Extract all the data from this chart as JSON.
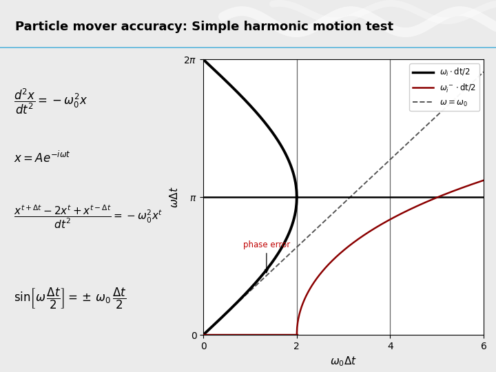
{
  "title": "Particle mover accuracy: Simple harmonic motion test",
  "title_bg_top": "#7ECFEA",
  "title_bg_bot": "#A8DCF0",
  "xlabel": "$\\omega_0\\Delta t$",
  "ylabel": "$\\omega\\Delta t$",
  "xlim": [
    0,
    6
  ],
  "ylim": [
    0,
    6.283185307
  ],
  "yticks": [
    0,
    3.14159265,
    6.2831853
  ],
  "ytick_labels": [
    "0",
    "$\\pi$",
    "$2\\pi$"
  ],
  "xticks": [
    0,
    2,
    4,
    6
  ],
  "legend_label_black": "$\\omega_i\\cdot$dt/2",
  "legend_label_red": "$\\omega_i^-\\cdot$dt/2",
  "legend_label_dashed": "$\\omega = \\omega_0$",
  "black_color": "#000000",
  "red_color": "#8B0000",
  "dashed_color": "#555555",
  "phase_error_label": "phase error",
  "phase_error_color": "#C00000",
  "bg_color": "#EBEBEB",
  "plot_bg": "#FFFFFF",
  "eq1": "$\\dfrac{d^2x}{dt^2} = -\\omega_0^2 x$",
  "eq2": "$x = Ae^{-i\\omega t}$",
  "eq3": "$\\dfrac{x^{t+\\Delta t} - 2x^t + x^{t-\\Delta t}}{dt^2} = -\\omega_0^2 x^t$",
  "eq4": "$\\sin\\!\\left[\\omega\\,\\dfrac{\\Delta t}{2}\\right] = \\pm\\,\\omega_0\\,\\dfrac{\\Delta t}{2}$"
}
